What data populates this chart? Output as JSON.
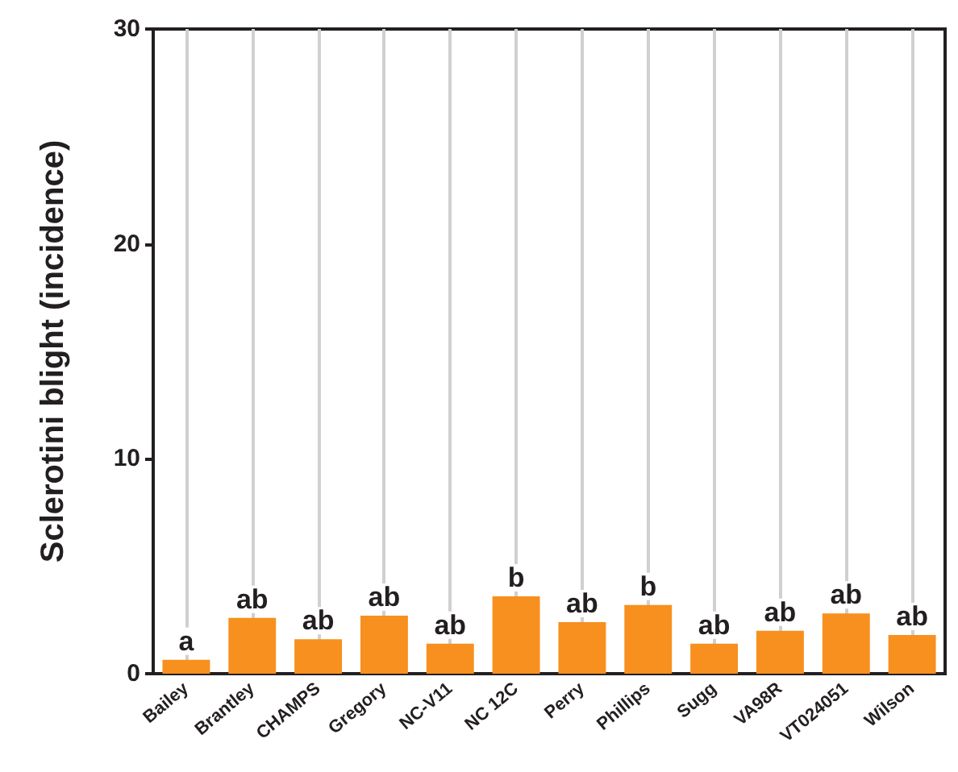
{
  "chart_data": {
    "type": "bar",
    "ylabel": "Sclerotini blight (incidence)",
    "categories": [
      "Bailey",
      "Brantley",
      "CHAMPS",
      "Gregory",
      "NC-V11",
      "NC 12C",
      "Perry",
      "Phillips",
      "Sugg",
      "VA98R",
      "VT024051",
      "Wilson"
    ],
    "values": [
      0.65,
      2.6,
      1.6,
      2.7,
      1.4,
      3.6,
      2.4,
      3.2,
      1.4,
      2.0,
      2.8,
      1.8
    ],
    "value_labels": [
      "a",
      "ab",
      "ab",
      "ab",
      "ab",
      "b",
      "ab",
      "b",
      "ab",
      "ab",
      "ab",
      "ab"
    ],
    "color": "#f7901e",
    "ylim": [
      0,
      30
    ],
    "yticks": [
      0,
      10,
      20,
      30
    ],
    "grid": "x"
  }
}
